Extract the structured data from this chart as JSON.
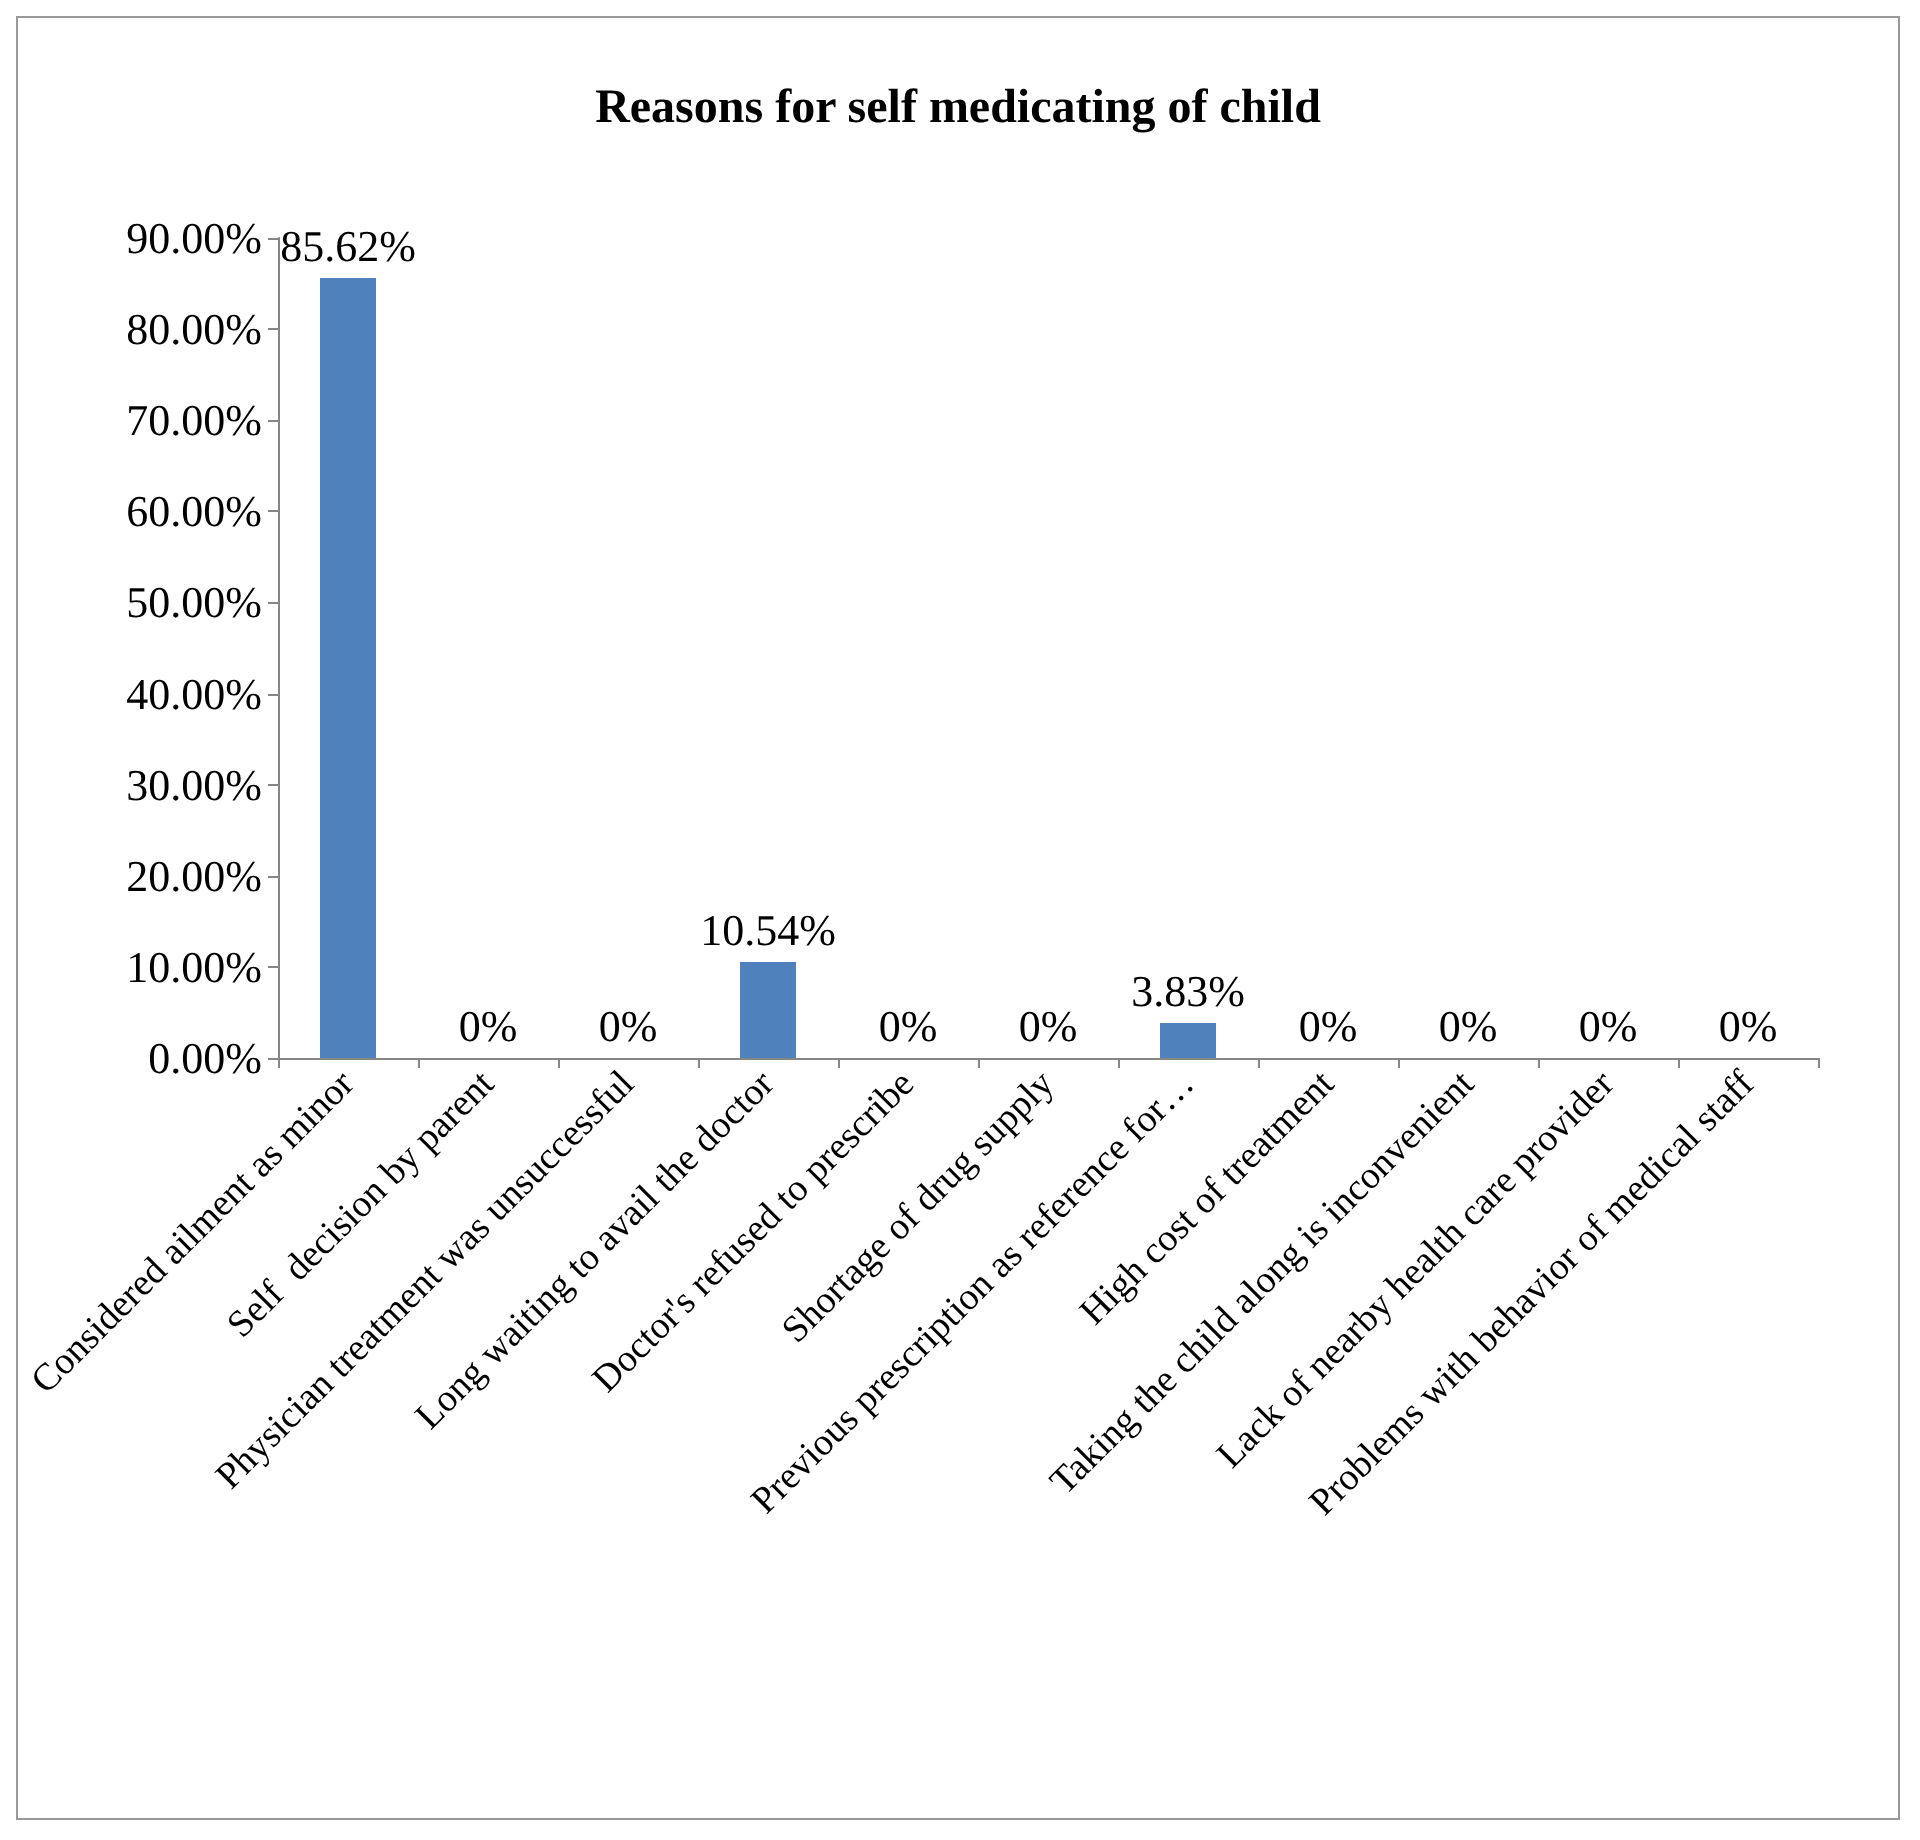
{
  "chart_data": {
    "type": "bar",
    "title": "Reasons for self medicating of child",
    "categories": [
      "Considered ailment as minor",
      "Self  decision by parent",
      "Physician treatment was unsuccessful",
      "Long waiting to avail the doctor",
      "Doctor's refused to prescribe",
      "Shortage of drug supply",
      "Previous prescription as reference for…",
      "High cost of treatment",
      "Taking the child along is inconvenient",
      "Lack of nearby health care provider",
      "Problems with behavior of medical staff"
    ],
    "values": [
      85.62,
      0,
      0,
      10.54,
      0,
      0,
      3.83,
      0,
      0,
      0,
      0
    ],
    "value_labels": [
      "85.62%",
      "0%",
      "0%",
      "10.54%",
      "0%",
      "0%",
      "3.83%",
      "0%",
      "0%",
      "0%",
      "0%"
    ],
    "color": "#4f81bd",
    "ylim": [
      0,
      90
    ],
    "yticks": [
      {
        "value": 0,
        "label": "0.00%"
      },
      {
        "value": 10,
        "label": "10.00%"
      },
      {
        "value": 20,
        "label": "20.00%"
      },
      {
        "value": 30,
        "label": "30.00%"
      },
      {
        "value": 40,
        "label": "40.00%"
      },
      {
        "value": 50,
        "label": "50.00%"
      },
      {
        "value": 60,
        "label": "60.00%"
      },
      {
        "value": 70,
        "label": "70.00%"
      },
      {
        "value": 80,
        "label": "80.00%"
      },
      {
        "value": 90,
        "label": "90.00%"
      }
    ],
    "grid": false
  }
}
